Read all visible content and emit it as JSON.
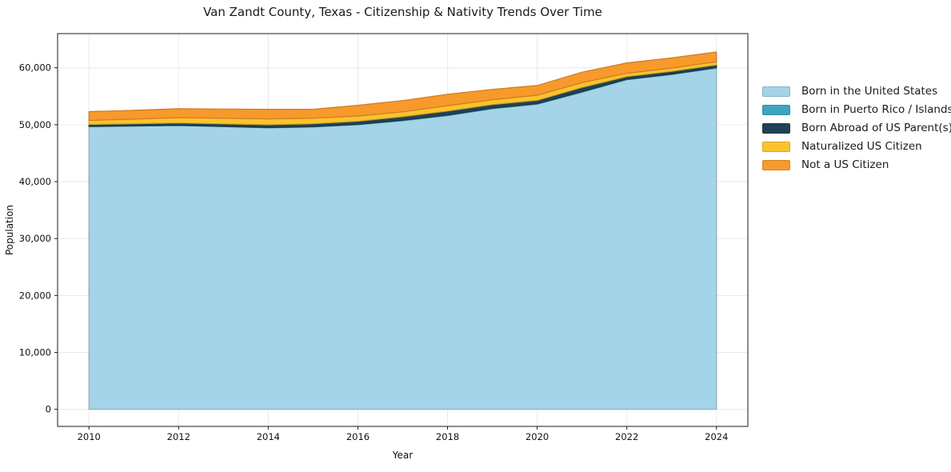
{
  "chart_data": {
    "type": "area",
    "stacked": true,
    "title": "Van Zandt County, Texas - Citizenship & Nativity Trends Over Time",
    "xlabel": "Year",
    "ylabel": "Population",
    "x": [
      2010,
      2011,
      2012,
      2013,
      2014,
      2015,
      2016,
      2017,
      2018,
      2019,
      2020,
      2021,
      2022,
      2023,
      2024
    ],
    "series": [
      {
        "name": "Born in the United States",
        "color": "#a5d3e8",
        "values": [
          49650,
          49750,
          49850,
          49650,
          49450,
          49600,
          50000,
          50700,
          51600,
          52800,
          53600,
          55700,
          57900,
          58800,
          59950
        ]
      },
      {
        "name": "Born in Puerto Rico / Islands",
        "color": "#3fa5bf",
        "values": [
          50,
          50,
          50,
          50,
          50,
          60,
          60,
          80,
          90,
          100,
          80,
          100,
          90,
          90,
          90
        ]
      },
      {
        "name": "Born Abroad of US Parent(s)",
        "color": "#1f4356",
        "values": [
          350,
          380,
          400,
          450,
          500,
          500,
          550,
          630,
          700,
          630,
          600,
          740,
          470,
          470,
          470
        ]
      },
      {
        "name": "Naturalized US Citizen",
        "color": "#fcc32d",
        "values": [
          700,
          800,
          950,
          980,
          1000,
          990,
          900,
          850,
          950,
          850,
          900,
          850,
          570,
          570,
          560
        ]
      },
      {
        "name": "Not a US Citizen",
        "color": "#f8992b",
        "values": [
          1550,
          1550,
          1550,
          1620,
          1700,
          1550,
          1900,
          1980,
          2000,
          1830,
          1700,
          1830,
          1830,
          1800,
          1700
        ]
      }
    ],
    "xticks": [
      2010,
      2012,
      2014,
      2016,
      2018,
      2020,
      2022,
      2024
    ],
    "xtick_labels": [
      "2010",
      "2012",
      "2014",
      "2016",
      "2018",
      "2020",
      "2022",
      "2024"
    ],
    "yticks": [
      0,
      10000,
      20000,
      30000,
      40000,
      50000,
      60000
    ],
    "ytick_labels": [
      "0",
      "10,000",
      "20,000",
      "30,000",
      "40,000",
      "50,000",
      "60,000"
    ],
    "xlim": [
      2009.3,
      2024.7
    ],
    "ylim": [
      -3000,
      66000
    ],
    "grid": true,
    "legend_position": "right"
  }
}
